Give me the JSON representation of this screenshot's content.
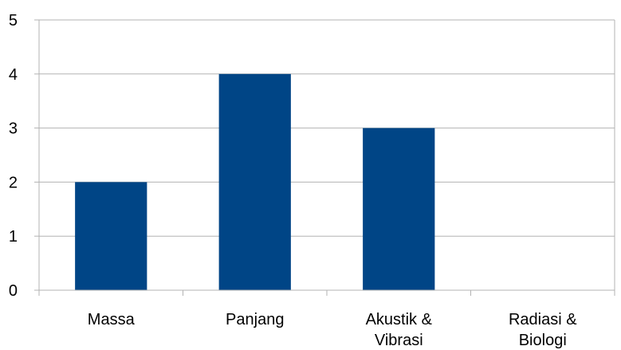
{
  "chart_data": {
    "type": "bar",
    "categories": [
      [
        "Massa"
      ],
      [
        "Panjang"
      ],
      [
        "Akustik &",
        "Vibrasi"
      ],
      [
        "Radiasi &",
        "Biologi"
      ]
    ],
    "values": [
      2,
      4,
      3,
      0
    ],
    "ylim": [
      0,
      5
    ],
    "yticks": [
      "0",
      "1",
      "2",
      "3",
      "4",
      "5"
    ],
    "grid": true,
    "bar_color": "#004586",
    "grid_color": "#b3b3b3",
    "axis_color": "#b3b3b3"
  }
}
